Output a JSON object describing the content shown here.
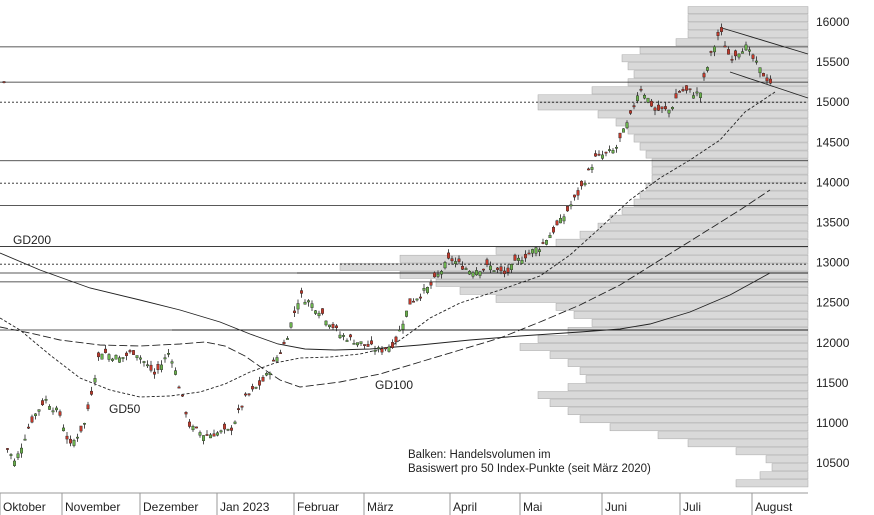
{
  "chart_data": {
    "type": "candlestick",
    "title": "",
    "y_axis": {
      "position": "right",
      "ylim": [
        10150,
        16250
      ],
      "ticks": [
        10500,
        11000,
        11500,
        12000,
        12500,
        13000,
        13500,
        14000,
        14500,
        15000,
        15500,
        16000
      ]
    },
    "x_axis": {
      "months": [
        "Oktober",
        "November",
        "Dezember",
        "Jan 2023",
        "Februar",
        "März",
        "April",
        "Mai",
        "Juni",
        "Juli",
        "August"
      ]
    },
    "horizontal_levels": {
      "solid": [
        15690,
        15250,
        14270,
        13710,
        13200,
        12870,
        12760,
        12160
      ],
      "dashed": [
        15000,
        13990,
        12980
      ]
    },
    "moving_averages": [
      {
        "label": "GD200"
      },
      {
        "label": "GD100"
      },
      {
        "label": "GD50"
      }
    ],
    "annotations": {
      "volume_note_line1": "Balken: Handelsvolumen im",
      "volume_note_line2": "Basiswert pro 50 Index-Punkte (seit März 2020)"
    },
    "volume_profile_relative": [
      {
        "price": 10250,
        "volume": 0.12
      },
      {
        "price": 10350,
        "volume": 0.08
      },
      {
        "price": 10450,
        "volume": 0.06
      },
      {
        "price": 10550,
        "volume": 0.07
      },
      {
        "price": 10650,
        "volume": 0.12
      },
      {
        "price": 10750,
        "volume": 0.2
      },
      {
        "price": 10850,
        "volume": 0.25
      },
      {
        "price": 10950,
        "volume": 0.33
      },
      {
        "price": 11050,
        "volume": 0.38
      },
      {
        "price": 11150,
        "volume": 0.4
      },
      {
        "price": 11250,
        "volume": 0.43
      },
      {
        "price": 11350,
        "volume": 0.45
      },
      {
        "price": 11450,
        "volume": 0.4
      },
      {
        "price": 11550,
        "volume": 0.37
      },
      {
        "price": 11650,
        "volume": 0.38
      },
      {
        "price": 11750,
        "volume": 0.4
      },
      {
        "price": 11850,
        "volume": 0.43
      },
      {
        "price": 11950,
        "volume": 0.48
      },
      {
        "price": 12050,
        "volume": 0.45
      },
      {
        "price": 12150,
        "volume": 0.4
      },
      {
        "price": 12250,
        "volume": 0.36
      },
      {
        "price": 12350,
        "volume": 0.39
      },
      {
        "price": 12450,
        "volume": 0.42
      },
      {
        "price": 12550,
        "volume": 0.52
      },
      {
        "price": 12650,
        "volume": 0.58
      },
      {
        "price": 12750,
        "volume": 0.62
      },
      {
        "price": 12850,
        "volume": 0.68
      },
      {
        "price": 12950,
        "volume": 0.78
      },
      {
        "price": 13050,
        "volume": 0.68
      },
      {
        "price": 13150,
        "volume": 0.52
      },
      {
        "price": 13250,
        "volume": 0.42
      },
      {
        "price": 13350,
        "volume": 0.38
      },
      {
        "price": 13450,
        "volume": 0.35
      },
      {
        "price": 13550,
        "volume": 0.33
      },
      {
        "price": 13650,
        "volume": 0.31
      },
      {
        "price": 13750,
        "volume": 0.29
      },
      {
        "price": 13850,
        "volume": 0.28
      },
      {
        "price": 13950,
        "volume": 0.27
      },
      {
        "price": 14050,
        "volume": 0.26
      },
      {
        "price": 14150,
        "volume": 0.26
      },
      {
        "price": 14250,
        "volume": 0.26
      },
      {
        "price": 14350,
        "volume": 0.27
      },
      {
        "price": 14450,
        "volume": 0.28
      },
      {
        "price": 14550,
        "volume": 0.29
      },
      {
        "price": 14650,
        "volume": 0.3
      },
      {
        "price": 14750,
        "volume": 0.32
      },
      {
        "price": 14850,
        "volume": 0.35
      },
      {
        "price": 14950,
        "volume": 0.45
      },
      {
        "price": 15050,
        "volume": 0.45
      },
      {
        "price": 15150,
        "volume": 0.36
      },
      {
        "price": 15250,
        "volume": 0.3
      },
      {
        "price": 15350,
        "volume": 0.29
      },
      {
        "price": 15450,
        "volume": 0.3
      },
      {
        "price": 15550,
        "volume": 0.31
      },
      {
        "price": 15650,
        "volume": 0.28
      },
      {
        "price": 15750,
        "volume": 0.22
      },
      {
        "price": 15850,
        "volume": 0.2
      },
      {
        "price": 15950,
        "volume": 0.2
      },
      {
        "price": 16050,
        "volume": 0.2
      },
      {
        "price": 16150,
        "volume": 0.2
      }
    ]
  }
}
